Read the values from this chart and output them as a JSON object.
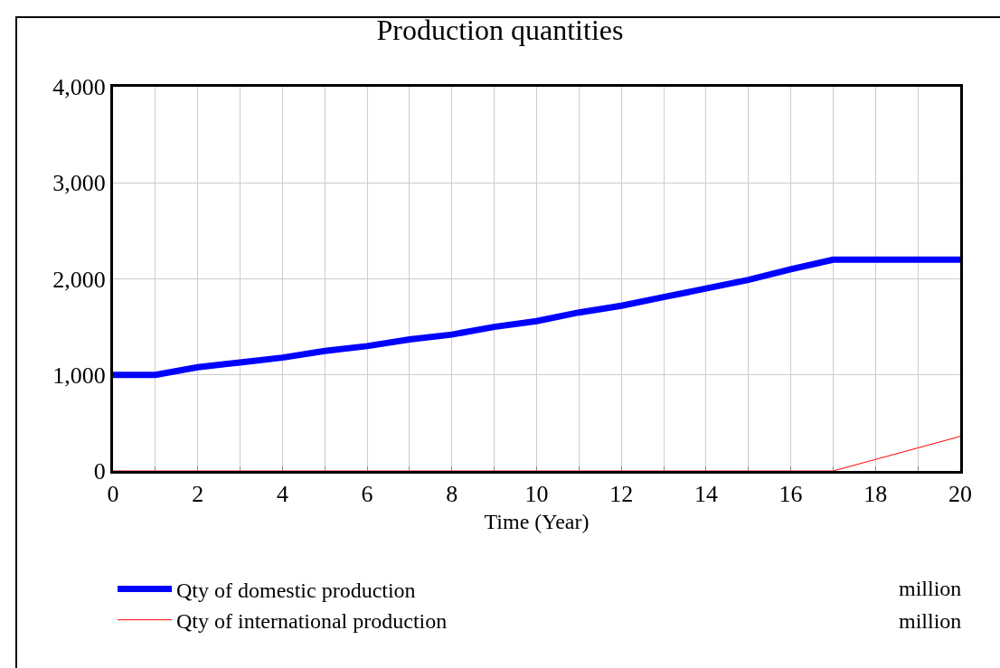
{
  "chart_data": {
    "type": "line",
    "title": "Production quantities",
    "xlabel": "Time (Year)",
    "x": [
      0,
      1,
      2,
      3,
      4,
      5,
      6,
      7,
      8,
      9,
      10,
      11,
      12,
      13,
      14,
      15,
      16,
      17,
      18,
      19,
      20
    ],
    "series": [
      {
        "name": "Qty of domestic production",
        "color": "#0000ff",
        "values": [
          1000,
          1000,
          1080,
          1130,
          1180,
          1250,
          1300,
          1370,
          1420,
          1500,
          1560,
          1650,
          1720,
          1810,
          1900,
          1990,
          2100,
          2200,
          2200,
          2200,
          2200
        ]
      },
      {
        "name": "Qty of international production",
        "color": "#ff0000",
        "values": [
          0,
          0,
          0,
          0,
          0,
          0,
          0,
          0,
          0,
          0,
          0,
          0,
          0,
          0,
          0,
          0,
          0,
          0,
          120,
          240,
          360
        ]
      }
    ],
    "annotations": [
      "million",
      "million"
    ],
    "xlim": [
      0,
      20
    ],
    "xticks": [
      0,
      {
        "value": 1,
        "label": null
      },
      2,
      {
        "value": 3,
        "label": null
      },
      4,
      {
        "value": 5,
        "label": null
      },
      6,
      {
        "value": 7,
        "label": null
      },
      8,
      {
        "value": 9,
        "label": null
      },
      10,
      {
        "value": 11,
        "label": null
      },
      12,
      {
        "value": 13,
        "label": null
      },
      14,
      {
        "value": 15,
        "label": null
      },
      16,
      {
        "value": 17,
        "label": null
      },
      18,
      {
        "value": 19,
        "label": null
      },
      20
    ],
    "ylim": [
      0,
      4000
    ],
    "yticks": [
      0,
      {
        "value": 1000,
        "label": "1,000"
      },
      {
        "value": 2000,
        "label": "2,000"
      },
      {
        "value": 3000,
        "label": "3,000"
      },
      {
        "value": 4000,
        "label": "4,000"
      }
    ],
    "grid": true,
    "legend": "bottom",
    "marker": "none",
    "line_style": "solid"
  }
}
